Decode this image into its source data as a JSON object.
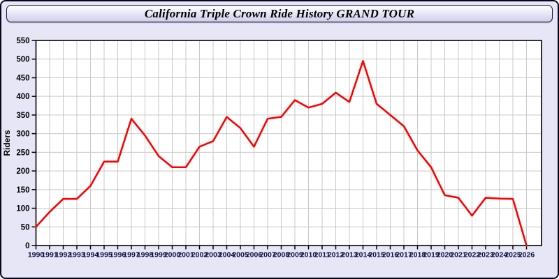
{
  "window": {
    "title": "California Triple Crown Ride History GRAND TOUR"
  },
  "chart_data": {
    "type": "line",
    "title": "California Triple Crown Ride History GRAND TOUR",
    "xlabel": "",
    "ylabel": "Riders",
    "x": [
      1990,
      1991,
      1992,
      1993,
      1994,
      1995,
      1996,
      1997,
      1998,
      1999,
      2000,
      2001,
      2002,
      2003,
      2004,
      2005,
      2006,
      2007,
      2008,
      2009,
      2010,
      2011,
      2012,
      2013,
      2014,
      2015,
      2016,
      2017,
      2018,
      2019,
      2020,
      2021,
      2022,
      2023,
      2024,
      2025,
      2026
    ],
    "values": [
      50,
      90,
      125,
      125,
      160,
      225,
      225,
      340,
      295,
      240,
      210,
      210,
      265,
      280,
      345,
      315,
      265,
      340,
      345,
      390,
      370,
      380,
      410,
      385,
      495,
      380,
      350,
      320,
      255,
      210,
      135,
      128,
      80,
      128,
      126,
      125,
      0
    ],
    "ylim": [
      0,
      550
    ],
    "ytick_step": 50,
    "yticks": [
      0,
      50,
      100,
      150,
      200,
      250,
      300,
      350,
      400,
      450,
      500,
      550
    ],
    "grid": "on",
    "legend": "none",
    "line_color": "#ff0000"
  },
  "colors": {
    "window_bg": "#e6e6f7",
    "window_border": "#05051e",
    "titlebar_border": "#1b1b3a",
    "plot_bg": "#ffffff",
    "grid_color": "#c9c9c9",
    "axis_color": "#000000",
    "y_label_color": "#000000",
    "x_label_color": "#101040",
    "line_color": "#ff0000"
  }
}
